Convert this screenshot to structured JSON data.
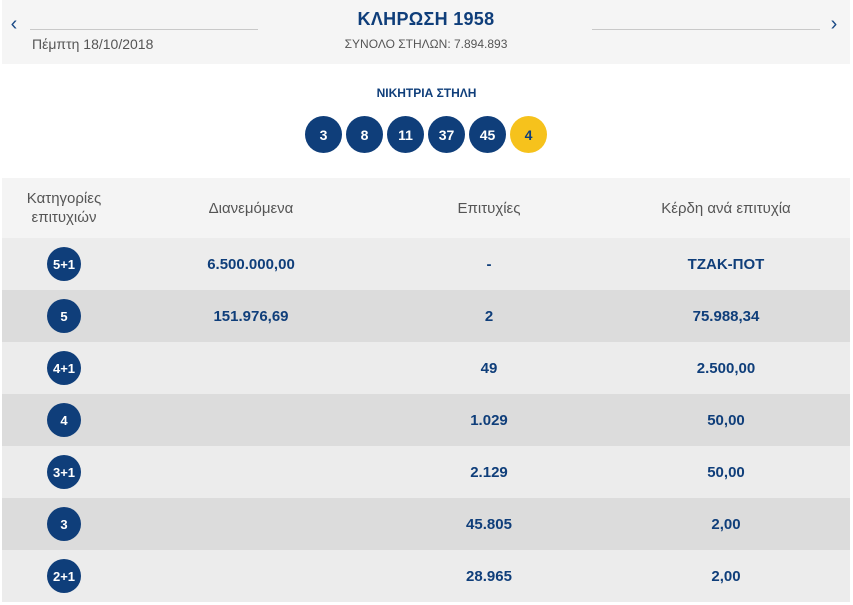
{
  "header": {
    "prev_arrow": "‹",
    "next_arrow": "›",
    "date": "Πέμπτη 18/10/2018",
    "title": "ΚΛΗΡΩΣΗ 1958",
    "total": "ΣΥΝΟΛΟ ΣΤΗΛΩΝ: 7.894.893"
  },
  "winning": {
    "label": "ΝΙΚΗΤΡΙΑ ΣΤΗΛΗ",
    "numbers": [
      "3",
      "8",
      "11",
      "37",
      "45"
    ],
    "bonus": "4"
  },
  "table": {
    "headers": [
      "Κατηγορίες επιτυχιών",
      "Διανεμόμενα",
      "Επιτυχίες",
      "Κέρδη ανά επιτυχία"
    ],
    "rows": [
      {
        "cat": "5+1",
        "distributed": "6.500.000,00",
        "winners": "-",
        "prize": "ΤΖΑΚ-ΠΟΤ"
      },
      {
        "cat": "5",
        "distributed": "151.976,69",
        "winners": "2",
        "prize": "75.988,34"
      },
      {
        "cat": "4+1",
        "distributed": "",
        "winners": "49",
        "prize": "2.500,00"
      },
      {
        "cat": "4",
        "distributed": "",
        "winners": "1.029",
        "prize": "50,00"
      },
      {
        "cat": "3+1",
        "distributed": "",
        "winners": "2.129",
        "prize": "50,00"
      },
      {
        "cat": "3",
        "distributed": "",
        "winners": "45.805",
        "prize": "2,00"
      },
      {
        "cat": "2+1",
        "distributed": "",
        "winners": "28.965",
        "prize": "2,00"
      }
    ]
  },
  "colors": {
    "primary": "#0f3e7a",
    "bonus": "#f6c21c"
  }
}
